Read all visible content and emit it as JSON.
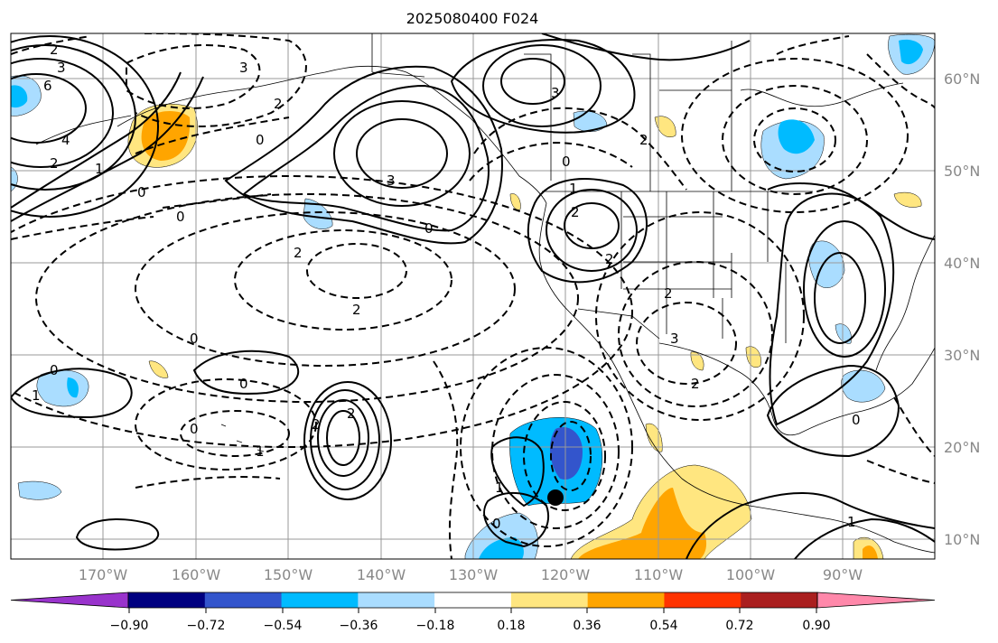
{
  "title": "2025080400 F024",
  "map": {
    "lon_range": [
      -180,
      -80
    ],
    "lat_range": [
      8,
      65
    ],
    "lat_labels": [
      "60°N",
      "50°N",
      "40°N",
      "30°N",
      "20°N",
      "10°N"
    ],
    "lon_labels": [
      "170°W",
      "160°W",
      "150°W",
      "140°W",
      "130°W",
      "120°W",
      "110°W",
      "100°W",
      "90°W"
    ],
    "contour_labels": [
      "3",
      "6",
      "4",
      "2",
      "1",
      "0",
      "2",
      "3",
      "0",
      "2",
      "3",
      "0",
      "2",
      "0",
      "2",
      "1",
      "2",
      "2",
      "2",
      "3",
      "2",
      "0",
      "0",
      "2",
      "2",
      "1",
      "0",
      "0",
      "0",
      "1",
      "1",
      "0",
      "1",
      "0",
      "3",
      "2"
    ],
    "center_marker": {
      "name": "storm-center",
      "lon": -121.5,
      "lat": 14.4
    }
  },
  "colorbar": {
    "ticks": [
      "−0.90",
      "−0.72",
      "−0.54",
      "−0.36",
      "−0.18",
      "0.18",
      "0.36",
      "0.54",
      "0.72",
      "0.90"
    ],
    "colors": [
      "#9933cc",
      "#000080",
      "#3355cc",
      "#00bbff",
      "#aaddff",
      "#ffffff",
      "#ffe680",
      "#ffa500",
      "#ff3300",
      "#aa1f1f",
      "#ff88aa"
    ]
  }
}
